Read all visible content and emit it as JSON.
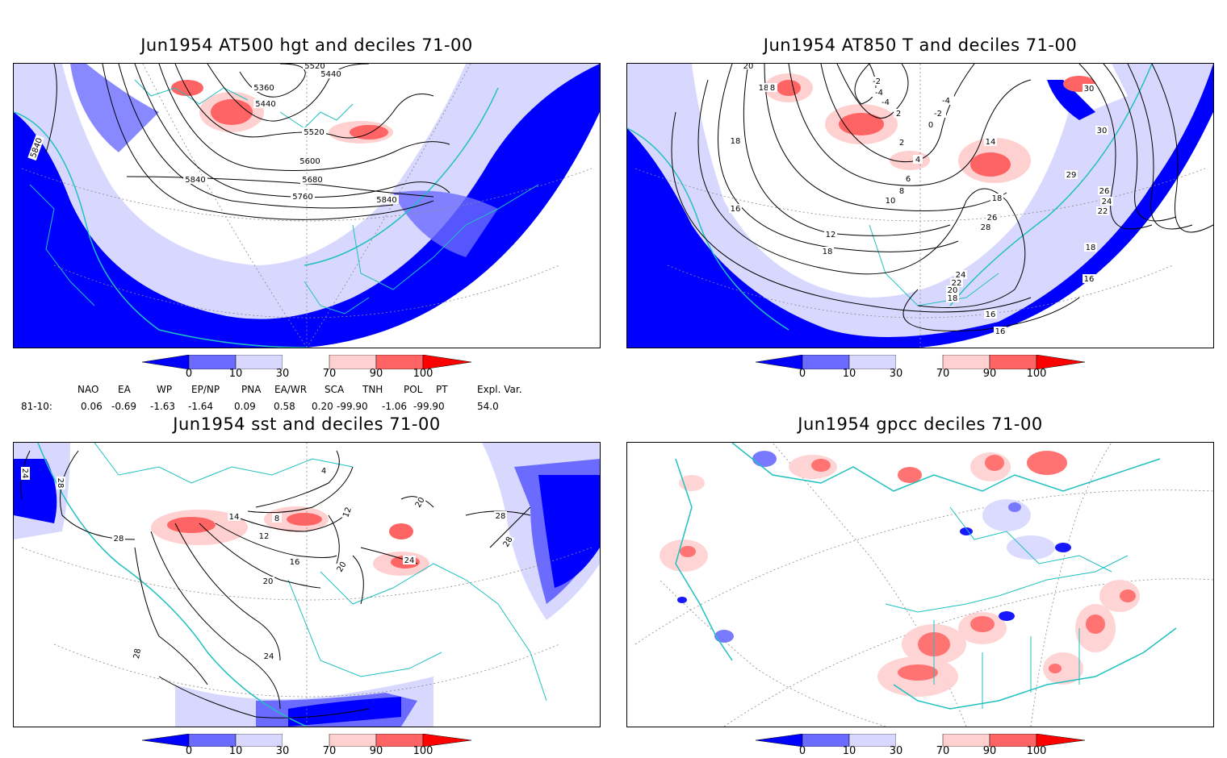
{
  "panels": [
    {
      "title": "Jun1954 AT500 hgt and deciles 71-00",
      "contour_labels": [
        "5520",
        "5360",
        "5440",
        "5440",
        "5520",
        "5600",
        "5680",
        "5760",
        "5840",
        "5840",
        "5840"
      ]
    },
    {
      "title": "Jun1954 AT850 T and deciles 71-00",
      "contour_labels": [
        "20",
        "18",
        "8",
        "-2",
        "-4",
        "-4",
        "-2",
        "-4",
        "2",
        "0",
        "2",
        "4",
        "6",
        "8",
        "10",
        "12",
        "14",
        "16",
        "18",
        "18",
        "18",
        "18",
        "20",
        "22",
        "24",
        "26",
        "28",
        "30",
        "30",
        "29",
        "26",
        "24",
        "22",
        "18",
        "16",
        "16",
        "16"
      ]
    },
    {
      "title": "Jun1954 sst and deciles 71-00",
      "contour_labels": [
        "24",
        "28",
        "28",
        "28",
        "28",
        "28",
        "24",
        "20",
        "16",
        "12",
        "8",
        "4",
        "12",
        "14",
        "20",
        "24",
        "20"
      ]
    },
    {
      "title": "Jun1954 gpcc deciles 71-00",
      "contour_labels": []
    }
  ],
  "colorbar": {
    "ticks": [
      "0",
      "10",
      "30",
      "70",
      "90",
      "100"
    ],
    "colors": [
      "#0000ff",
      "#6b6bff",
      "#d8d8ff",
      "#ffffff",
      "#ffd0d0",
      "#ff6464",
      "#ff0000"
    ]
  },
  "indices": {
    "headers": [
      "NAO",
      "EA",
      "WP",
      "EP/NP",
      "PNA",
      "EA/WR",
      "SCA",
      "TNH",
      "POL",
      "PT",
      "Expl. Var."
    ],
    "row_label": "81-10:",
    "values": [
      "0.06",
      "-0.69",
      "-1.63",
      "-1.64",
      "0.09",
      "0.58",
      "0.20",
      "-99.90",
      "-1.06",
      "-99.90",
      "54.0"
    ]
  },
  "colors": {
    "coast": "#20c0c0",
    "frame": "#000000",
    "contour": "#000000"
  }
}
